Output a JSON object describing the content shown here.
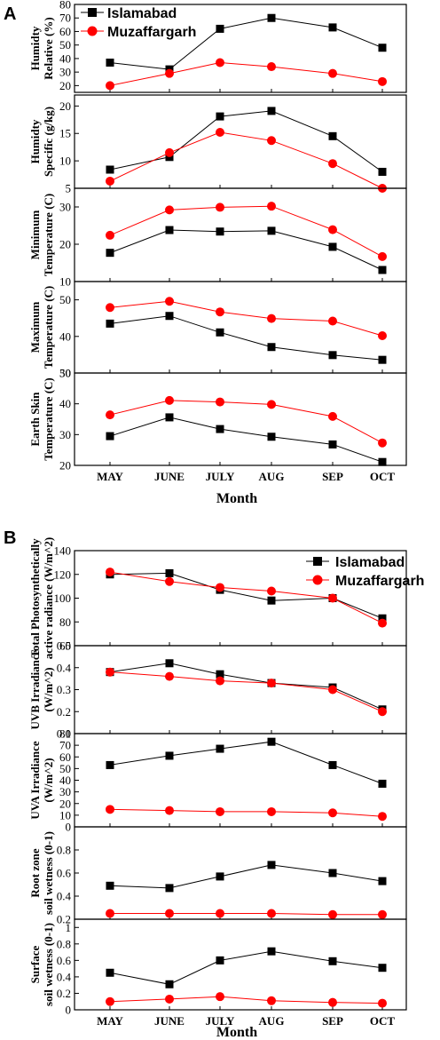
{
  "colors": {
    "islamabad": "#000000",
    "muzaffargarh": "#ff0000"
  },
  "figure": {
    "panel_a_label": "A",
    "panel_b_label": "B",
    "xlabel_a": "Month",
    "xlabel_b": "Month",
    "legend": {
      "series1": "Islamabad",
      "series2": "Muzaffargarh"
    }
  },
  "chart_data": [
    {
      "type": "line",
      "panel": "A",
      "title": "",
      "ylabel_lines": [
        "Humidty",
        "Relative (%)"
      ],
      "categories": [
        "MAY",
        "JUNE",
        "JULY",
        "AUG",
        "SEP",
        "OCT"
      ],
      "ylim": [
        15,
        80
      ],
      "yticks": [
        20,
        30,
        40,
        50,
        60,
        70,
        80
      ],
      "series": [
        {
          "name": "Islamabad",
          "values": [
            37,
            32,
            62,
            70,
            63,
            48
          ]
        },
        {
          "name": "Muzaffargarh",
          "values": [
            20,
            29,
            37,
            34,
            29,
            23
          ]
        }
      ]
    },
    {
      "type": "line",
      "panel": "A",
      "title": "",
      "ylabel_lines": [
        "Humidty",
        "Specific (g/kg)"
      ],
      "categories": [
        "MAY",
        "JUNE",
        "JULY",
        "AUG",
        "SEP",
        "OCT"
      ],
      "ylim": [
        5,
        22
      ],
      "yticks": [
        5,
        10,
        15,
        20
      ],
      "series": [
        {
          "name": "Islamabad",
          "values": [
            8.4,
            10.7,
            18.1,
            19.1,
            14.5,
            8.0
          ]
        },
        {
          "name": "Muzaffargarh",
          "values": [
            6.3,
            11.5,
            15.2,
            13.7,
            9.5,
            5.0
          ]
        }
      ]
    },
    {
      "type": "line",
      "panel": "A",
      "title": "",
      "ylabel_lines": [
        "Minimum",
        "Temperature (C)"
      ],
      "categories": [
        "MAY",
        "JUNE",
        "JULY",
        "AUG",
        "SEP",
        "OCT"
      ],
      "ylim": [
        10,
        35
      ],
      "yticks": [
        10,
        20,
        30
      ],
      "series": [
        {
          "name": "Islamabad",
          "values": [
            17.7,
            23.8,
            23.4,
            23.6,
            19.3,
            13.1
          ]
        },
        {
          "name": "Muzaffargarh",
          "values": [
            22.4,
            29.2,
            29.9,
            30.2,
            23.9,
            16.7
          ]
        }
      ]
    },
    {
      "type": "line",
      "panel": "A",
      "title": "",
      "ylabel_lines": [
        "Maximum",
        "Temperature (C)"
      ],
      "categories": [
        "MAY",
        "JUNE",
        "JULY",
        "AUG",
        "SEP",
        "OCT"
      ],
      "ylim": [
        30,
        55
      ],
      "yticks": [
        30,
        40,
        50
      ],
      "series": [
        {
          "name": "Islamabad",
          "values": [
            43.5,
            45.6,
            41.1,
            37.1,
            34.9,
            33.6
          ]
        },
        {
          "name": "Muzaffargarh",
          "values": [
            47.9,
            49.6,
            46.7,
            44.9,
            44.2,
            40.2
          ]
        }
      ]
    },
    {
      "type": "line",
      "panel": "A",
      "title": "",
      "ylabel_lines": [
        "Earth Skin",
        "Temperature (C)"
      ],
      "categories": [
        "MAY",
        "JUNE",
        "JULY",
        "AUG",
        "SEP",
        "OCT"
      ],
      "ylim": [
        20,
        50
      ],
      "yticks": [
        20,
        30,
        40,
        50
      ],
      "series": [
        {
          "name": "Islamabad",
          "values": [
            29.5,
            35.6,
            31.8,
            29.3,
            26.8,
            21.1
          ]
        },
        {
          "name": "Muzaffargarh",
          "values": [
            36.4,
            41.1,
            40.6,
            39.8,
            35.9,
            27.3
          ]
        }
      ]
    },
    {
      "type": "line",
      "panel": "B",
      "title": "",
      "ylabel_lines": [
        "Total Photosynthetically",
        "active radiance (W/m^2)"
      ],
      "categories": [
        "MAY",
        "JUNE",
        "JULY",
        "AUG",
        "SEP",
        "OCT"
      ],
      "ylim": [
        60,
        140
      ],
      "yticks": [
        60,
        80,
        100,
        120,
        140
      ],
      "series": [
        {
          "name": "Islamabad",
          "values": [
            120,
            121,
            107,
            98,
            100,
            83
          ]
        },
        {
          "name": "Muzaffargarh",
          "values": [
            122,
            114,
            109,
            106,
            100,
            79
          ]
        }
      ]
    },
    {
      "type": "line",
      "panel": "B",
      "title": "",
      "ylabel_lines": [
        "UVB Irradiance",
        "(W/m^2)"
      ],
      "categories": [
        "MAY",
        "JUNE",
        "JULY",
        "AUG",
        "SEP",
        "OCT"
      ],
      "ylim": [
        0.1,
        0.5
      ],
      "yticks": [
        0.1,
        0.2,
        0.3,
        0.4,
        0.5
      ],
      "series": [
        {
          "name": "Islamabad",
          "values": [
            0.38,
            0.42,
            0.37,
            0.33,
            0.31,
            0.21
          ]
        },
        {
          "name": "Muzaffargarh",
          "values": [
            0.38,
            0.36,
            0.34,
            0.33,
            0.3,
            0.2
          ]
        }
      ]
    },
    {
      "type": "line",
      "panel": "B",
      "title": "",
      "ylabel_lines": [
        "UVA Irradiance",
        "(W/m^2)"
      ],
      "categories": [
        "MAY",
        "JUNE",
        "JULY",
        "AUG",
        "SEP",
        "OCT"
      ],
      "ylim": [
        0,
        80
      ],
      "yticks": [
        0,
        10,
        20,
        30,
        40,
        50,
        60,
        70,
        80
      ],
      "series": [
        {
          "name": "Islamabad",
          "values": [
            53,
            61,
            67,
            73,
            53,
            37
          ]
        },
        {
          "name": "Muzaffargarh",
          "values": [
            15,
            14,
            13,
            13,
            12,
            9
          ]
        }
      ]
    },
    {
      "type": "line",
      "panel": "B",
      "title": "",
      "ylabel_lines": [
        "Root zone",
        "soil wetness (0-1)"
      ],
      "categories": [
        "MAY",
        "JUNE",
        "JULY",
        "AUG",
        "SEP",
        "OCT"
      ],
      "ylim": [
        0.2,
        1.0
      ],
      "yticks": [
        0.2,
        0.4,
        0.6,
        0.8
      ],
      "series": [
        {
          "name": "Islamabad",
          "values": [
            0.49,
            0.47,
            0.57,
            0.67,
            0.6,
            0.53
          ]
        },
        {
          "name": "Muzaffargarh",
          "values": [
            0.25,
            0.25,
            0.25,
            0.25,
            0.24,
            0.24
          ]
        }
      ]
    },
    {
      "type": "line",
      "panel": "B",
      "title": "",
      "ylabel_lines": [
        "Surface",
        "soil wetness (0-1)"
      ],
      "categories": [
        "MAY",
        "JUNE",
        "JULY",
        "AUG",
        "SEP",
        "OCT"
      ],
      "ylim": [
        0.0,
        1.1
      ],
      "yticks": [
        0.0,
        0.2,
        0.4,
        0.6,
        0.8,
        1.0
      ],
      "series": [
        {
          "name": "Islamabad",
          "values": [
            0.45,
            0.31,
            0.6,
            0.71,
            0.59,
            0.51
          ]
        },
        {
          "name": "Muzaffargarh",
          "values": [
            0.1,
            0.13,
            0.16,
            0.11,
            0.09,
            0.08
          ]
        }
      ]
    }
  ]
}
